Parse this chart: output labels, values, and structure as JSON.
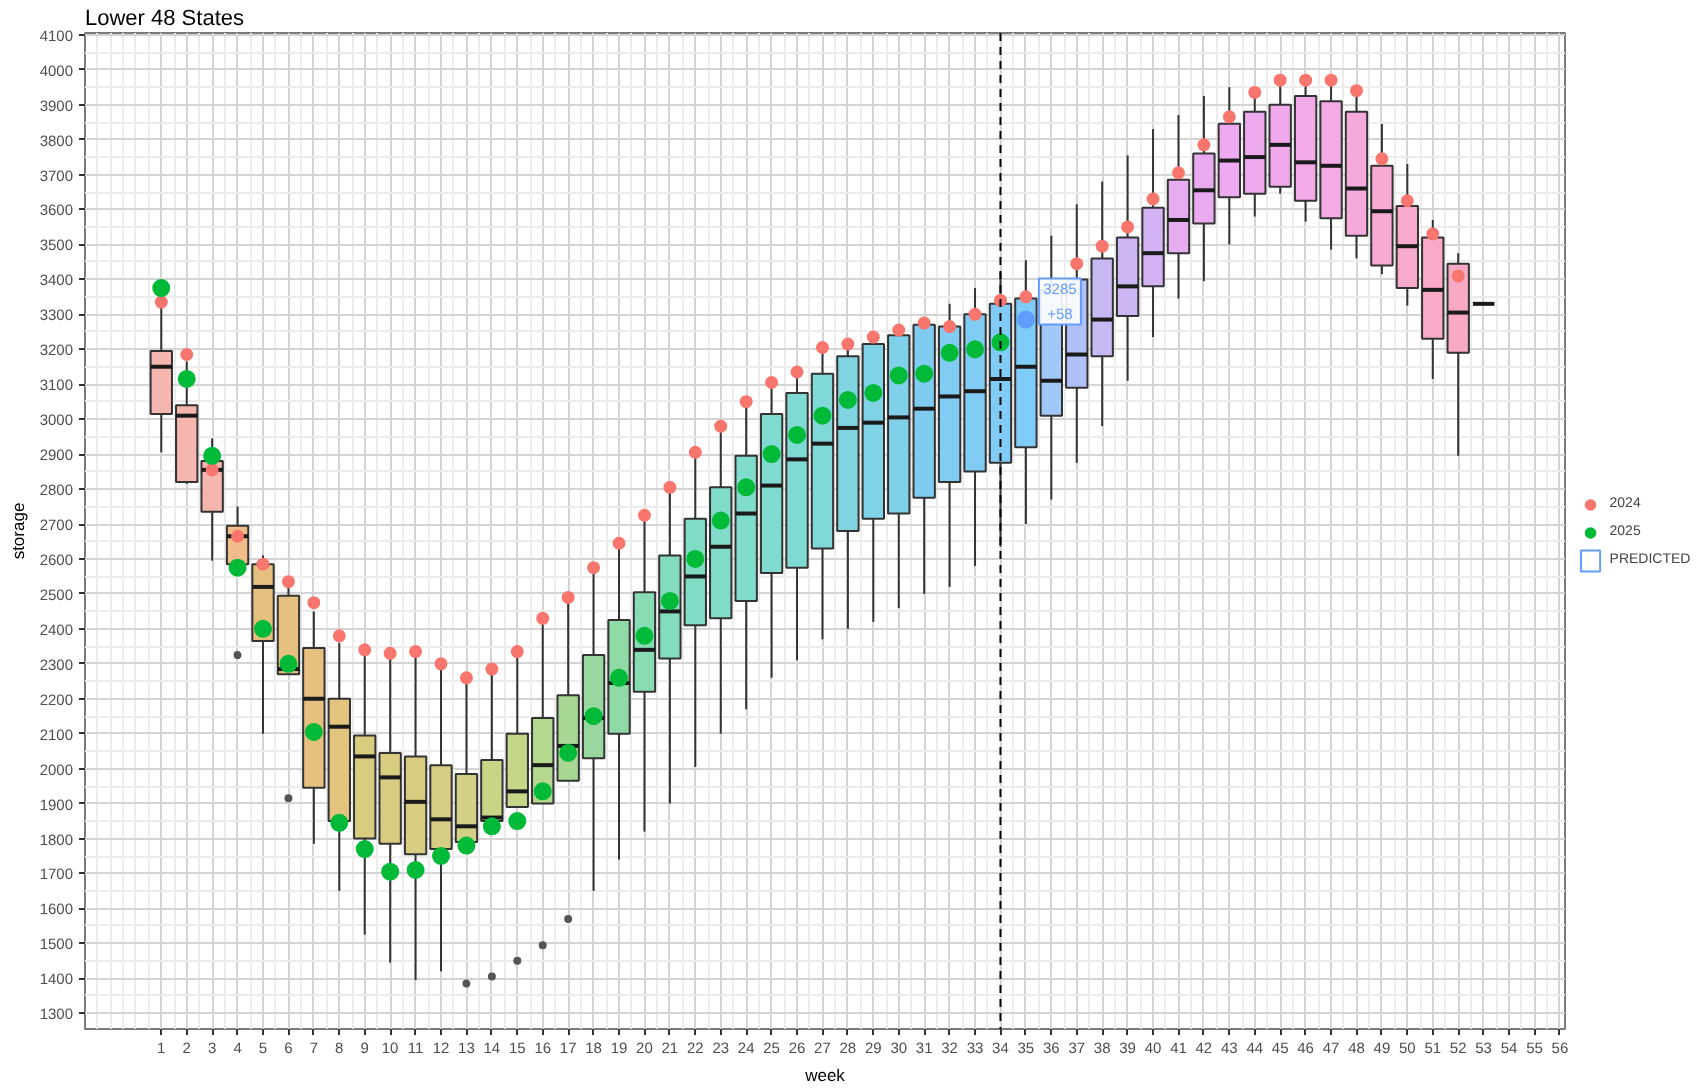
{
  "chart_data": {
    "type": "box",
    "title": "Lower 48 States",
    "xlabel": "week",
    "ylabel": "storage",
    "x": [
      1,
      2,
      3,
      4,
      5,
      6,
      7,
      8,
      9,
      10,
      11,
      12,
      13,
      14,
      15,
      16,
      17,
      18,
      19,
      20,
      21,
      22,
      23,
      24,
      25,
      26,
      27,
      28,
      29,
      30,
      31,
      32,
      33,
      34,
      35,
      36,
      37,
      38,
      39,
      40,
      41,
      42,
      43,
      44,
      45,
      46,
      47,
      48,
      49,
      50,
      51,
      52,
      53
    ],
    "boxes": [
      {
        "low": 2905,
        "q1": 3015,
        "median": 3150,
        "q3": 3195,
        "high": 3325
      },
      {
        "low": 2815,
        "q1": 2820,
        "median": 3010,
        "q3": 3040,
        "high": 3165
      },
      {
        "low": 2595,
        "q1": 2735,
        "median": 2855,
        "q3": 2880,
        "high": 2945
      },
      {
        "low": 2585,
        "q1": 2585,
        "median": 2665,
        "q3": 2695,
        "high": 2750,
        "outliers": [
          2325
        ]
      },
      {
        "low": 2100,
        "q1": 2365,
        "median": 2520,
        "q3": 2585,
        "high": 2610
      },
      {
        "low": 2270,
        "q1": 2270,
        "median": 2285,
        "q3": 2495,
        "high": 2520,
        "outliers": [
          1915
        ]
      },
      {
        "low": 1785,
        "q1": 1945,
        "median": 2200,
        "q3": 2345,
        "high": 2450
      },
      {
        "low": 1650,
        "q1": 1850,
        "median": 2120,
        "q3": 2200,
        "high": 2360
      },
      {
        "low": 1525,
        "q1": 1800,
        "median": 2035,
        "q3": 2095,
        "high": 2325
      },
      {
        "low": 1445,
        "q1": 1785,
        "median": 1975,
        "q3": 2045,
        "high": 2325
      },
      {
        "low": 1395,
        "q1": 1755,
        "median": 1905,
        "q3": 2035,
        "high": 2335
      },
      {
        "low": 1420,
        "q1": 1770,
        "median": 1855,
        "q3": 2010,
        "high": 2300
      },
      {
        "low": 1790,
        "q1": 1790,
        "median": 1835,
        "q3": 1985,
        "high": 2260,
        "outliers": [
          1385
        ]
      },
      {
        "low": 1850,
        "q1": 1850,
        "median": 1860,
        "q3": 2025,
        "high": 2285,
        "outliers": [
          1405
        ]
      },
      {
        "low": 1890,
        "q1": 1890,
        "median": 1935,
        "q3": 2100,
        "high": 2335,
        "outliers": [
          1450
        ]
      },
      {
        "low": 1900,
        "q1": 1900,
        "median": 2010,
        "q3": 2145,
        "high": 2430,
        "outliers": [
          1495
        ]
      },
      {
        "low": 1965,
        "q1": 1965,
        "median": 2065,
        "q3": 2210,
        "high": 2490,
        "outliers": [
          1570
        ]
      },
      {
        "low": 1650,
        "q1": 2030,
        "median": 2145,
        "q3": 2325,
        "high": 2570
      },
      {
        "low": 1740,
        "q1": 2100,
        "median": 2245,
        "q3": 2425,
        "high": 2645
      },
      {
        "low": 1820,
        "q1": 2220,
        "median": 2340,
        "q3": 2505,
        "high": 2720
      },
      {
        "low": 1900,
        "q1": 2315,
        "median": 2450,
        "q3": 2610,
        "high": 2800
      },
      {
        "low": 2005,
        "q1": 2410,
        "median": 2550,
        "q3": 2715,
        "high": 2905
      },
      {
        "low": 2100,
        "q1": 2430,
        "median": 2635,
        "q3": 2805,
        "high": 2975
      },
      {
        "low": 2170,
        "q1": 2480,
        "median": 2730,
        "q3": 2895,
        "high": 3045
      },
      {
        "low": 2260,
        "q1": 2560,
        "median": 2810,
        "q3": 3015,
        "high": 3100
      },
      {
        "low": 2310,
        "q1": 2575,
        "median": 2885,
        "q3": 3075,
        "high": 3135
      },
      {
        "low": 2370,
        "q1": 2630,
        "median": 2930,
        "q3": 3130,
        "high": 3200
      },
      {
        "low": 2400,
        "q1": 2680,
        "median": 2975,
        "q3": 3180,
        "high": 3210
      },
      {
        "low": 2420,
        "q1": 2715,
        "median": 2990,
        "q3": 3215,
        "high": 3230
      },
      {
        "low": 2460,
        "q1": 2730,
        "median": 3005,
        "q3": 3240,
        "high": 3255
      },
      {
        "low": 2500,
        "q1": 2775,
        "median": 3030,
        "q3": 3270,
        "high": 3275
      },
      {
        "low": 2520,
        "q1": 2820,
        "median": 3065,
        "q3": 3265,
        "high": 3330
      },
      {
        "low": 2580,
        "q1": 2850,
        "median": 3080,
        "q3": 3300,
        "high": 3375
      },
      {
        "low": 2635,
        "q1": 2875,
        "median": 3115,
        "q3": 3330,
        "high": 3420
      },
      {
        "low": 2700,
        "q1": 2920,
        "median": 3150,
        "q3": 3345,
        "high": 3455
      },
      {
        "low": 2770,
        "q1": 3010,
        "median": 3110,
        "q3": 3370,
        "high": 3525
      },
      {
        "low": 2875,
        "q1": 3090,
        "median": 3185,
        "q3": 3400,
        "high": 3615
      },
      {
        "low": 2980,
        "q1": 3180,
        "median": 3285,
        "q3": 3460,
        "high": 3680
      },
      {
        "low": 3110,
        "q1": 3295,
        "median": 3380,
        "q3": 3520,
        "high": 3755
      },
      {
        "low": 3235,
        "q1": 3380,
        "median": 3475,
        "q3": 3605,
        "high": 3830
      },
      {
        "low": 3345,
        "q1": 3475,
        "median": 3570,
        "q3": 3685,
        "high": 3870
      },
      {
        "low": 3395,
        "q1": 3560,
        "median": 3655,
        "q3": 3760,
        "high": 3925
      },
      {
        "low": 3500,
        "q1": 3635,
        "median": 3740,
        "q3": 3845,
        "high": 3950
      },
      {
        "low": 3580,
        "q1": 3645,
        "median": 3750,
        "q3": 3880,
        "high": 3935
      },
      {
        "low": 3645,
        "q1": 3665,
        "median": 3785,
        "q3": 3900,
        "high": 3970
      },
      {
        "low": 3565,
        "q1": 3625,
        "median": 3735,
        "q3": 3925,
        "high": 3970
      },
      {
        "low": 3485,
        "q1": 3575,
        "median": 3725,
        "q3": 3910,
        "high": 3970
      },
      {
        "low": 3460,
        "q1": 3525,
        "median": 3660,
        "q3": 3880,
        "high": 3940
      },
      {
        "low": 3415,
        "q1": 3440,
        "median": 3595,
        "q3": 3725,
        "high": 3845
      },
      {
        "low": 3325,
        "q1": 3375,
        "median": 3495,
        "q3": 3610,
        "high": 3730
      },
      {
        "low": 3115,
        "q1": 3230,
        "median": 3370,
        "q3": 3520,
        "high": 3570
      },
      {
        "low": 2895,
        "q1": 3190,
        "median": 3305,
        "q3": 3445,
        "high": 3475
      },
      {
        "low": 3330,
        "q1": 3330,
        "median": 3330,
        "q3": 3330,
        "high": 3330
      }
    ],
    "colors": [
      "#f4b6ae",
      "#f4b6ae",
      "#f4b6ae",
      "#f0bc88",
      "#e6c07e",
      "#e6c07e",
      "#e6c07e",
      "#e2c47e",
      "#d8cc80",
      "#d8cc80",
      "#d8cc80",
      "#d6ce82",
      "#d2d084",
      "#cad486",
      "#c4d688",
      "#b4d88e",
      "#a8d894",
      "#98d8a0",
      "#90daa8",
      "#88dcb4",
      "#84dcbc",
      "#80dcc4",
      "#80dcc8",
      "#80dccc",
      "#80dcd0",
      "#80dad4",
      "#80d8d8",
      "#80d4e0",
      "#80d2e6",
      "#80d0ea",
      "#80ccf0",
      "#80ccf2",
      "#80ccf4",
      "#80ccf6",
      "#80ccf8",
      "#a0c8f8",
      "#b0c0f8",
      "#c8b8f4",
      "#ccb6f4",
      "#d2b4f4",
      "#e6acf0",
      "#eaaaf0",
      "#eeaaf0",
      "#eeaaee",
      "#f0aaec",
      "#f2aae8",
      "#f4aae4",
      "#f6aadc",
      "#f8aad4",
      "#f8aacc",
      "#f8aac8",
      "#f8aac4",
      "#333333"
    ],
    "series": [
      {
        "name": "2024",
        "type": "scatter",
        "color": "#f8766d",
        "x": [
          1,
          2,
          3,
          4,
          5,
          6,
          7,
          8,
          9,
          10,
          11,
          12,
          13,
          14,
          15,
          16,
          17,
          18,
          19,
          20,
          21,
          22,
          23,
          24,
          25,
          26,
          27,
          28,
          29,
          30,
          31,
          32,
          33,
          34,
          35,
          36,
          37,
          38,
          39,
          40,
          41,
          42,
          43,
          44,
          45,
          46,
          47,
          48,
          49,
          50,
          51,
          52
        ],
        "values": [
          3335,
          3185,
          2855,
          2665,
          2585,
          2535,
          2475,
          2380,
          2340,
          2330,
          2335,
          2300,
          2260,
          2285,
          2335,
          2430,
          2490,
          2575,
          2645,
          2725,
          2805,
          2905,
          2980,
          3050,
          3105,
          3135,
          3205,
          3215,
          3235,
          3255,
          3275,
          3265,
          3300,
          3340,
          3350,
          null,
          3445,
          3495,
          3550,
          3630,
          3705,
          3785,
          3865,
          3935,
          3970,
          3970,
          3970,
          3940,
          3745,
          3625,
          3530,
          3410
        ]
      },
      {
        "name": "2025",
        "type": "scatter",
        "color": "#00ba38",
        "x": [
          1,
          2,
          3,
          4,
          5,
          6,
          7,
          8,
          9,
          10,
          11,
          12,
          13,
          14,
          15,
          16,
          17,
          18,
          19,
          20,
          21,
          22,
          23,
          24,
          25,
          26,
          27,
          28,
          29,
          30,
          31,
          32,
          33,
          34
        ],
        "values": [
          3375,
          3115,
          2895,
          2575,
          2400,
          2300,
          2105,
          1845,
          1770,
          1705,
          1710,
          1750,
          1780,
          1835,
          1850,
          1935,
          2045,
          2150,
          2260,
          2380,
          2480,
          2600,
          2710,
          2805,
          2900,
          2955,
          3010,
          3055,
          3075,
          3125,
          3130,
          3190,
          3200,
          3220
        ]
      },
      {
        "name": "PREDICTED",
        "type": "scatter",
        "color": "#619cff",
        "x": [
          35
        ],
        "values": [
          3285
        ],
        "value_labels": [
          "3285\n+58"
        ]
      }
    ],
    "xlim": [
      -2,
      56.2
    ],
    "xticks": [
      1,
      2,
      3,
      4,
      5,
      6,
      7,
      8,
      9,
      10,
      11,
      12,
      13,
      14,
      15,
      16,
      17,
      18,
      19,
      20,
      21,
      22,
      23,
      24,
      25,
      26,
      27,
      28,
      29,
      30,
      31,
      32,
      33,
      34,
      35,
      36,
      37,
      38,
      39,
      40,
      41,
      42,
      43,
      44,
      45,
      46,
      47,
      48,
      49,
      50,
      51,
      52,
      53,
      54,
      55,
      56
    ],
    "ylim": [
      1255,
      4105
    ],
    "yticks": [
      1300,
      1400,
      1500,
      1600,
      1700,
      1800,
      1900,
      2000,
      2100,
      2200,
      2300,
      2400,
      2500,
      2600,
      2700,
      2800,
      2900,
      3000,
      3100,
      3200,
      3300,
      3400,
      3500,
      3600,
      3700,
      3800,
      3900,
      4000,
      4100
    ],
    "ref_lines": [
      {
        "axis": "x",
        "value": 34,
        "color": "#000000",
        "line_style": "dashed"
      }
    ],
    "grid": true,
    "legend": "right",
    "marker": "circle"
  }
}
